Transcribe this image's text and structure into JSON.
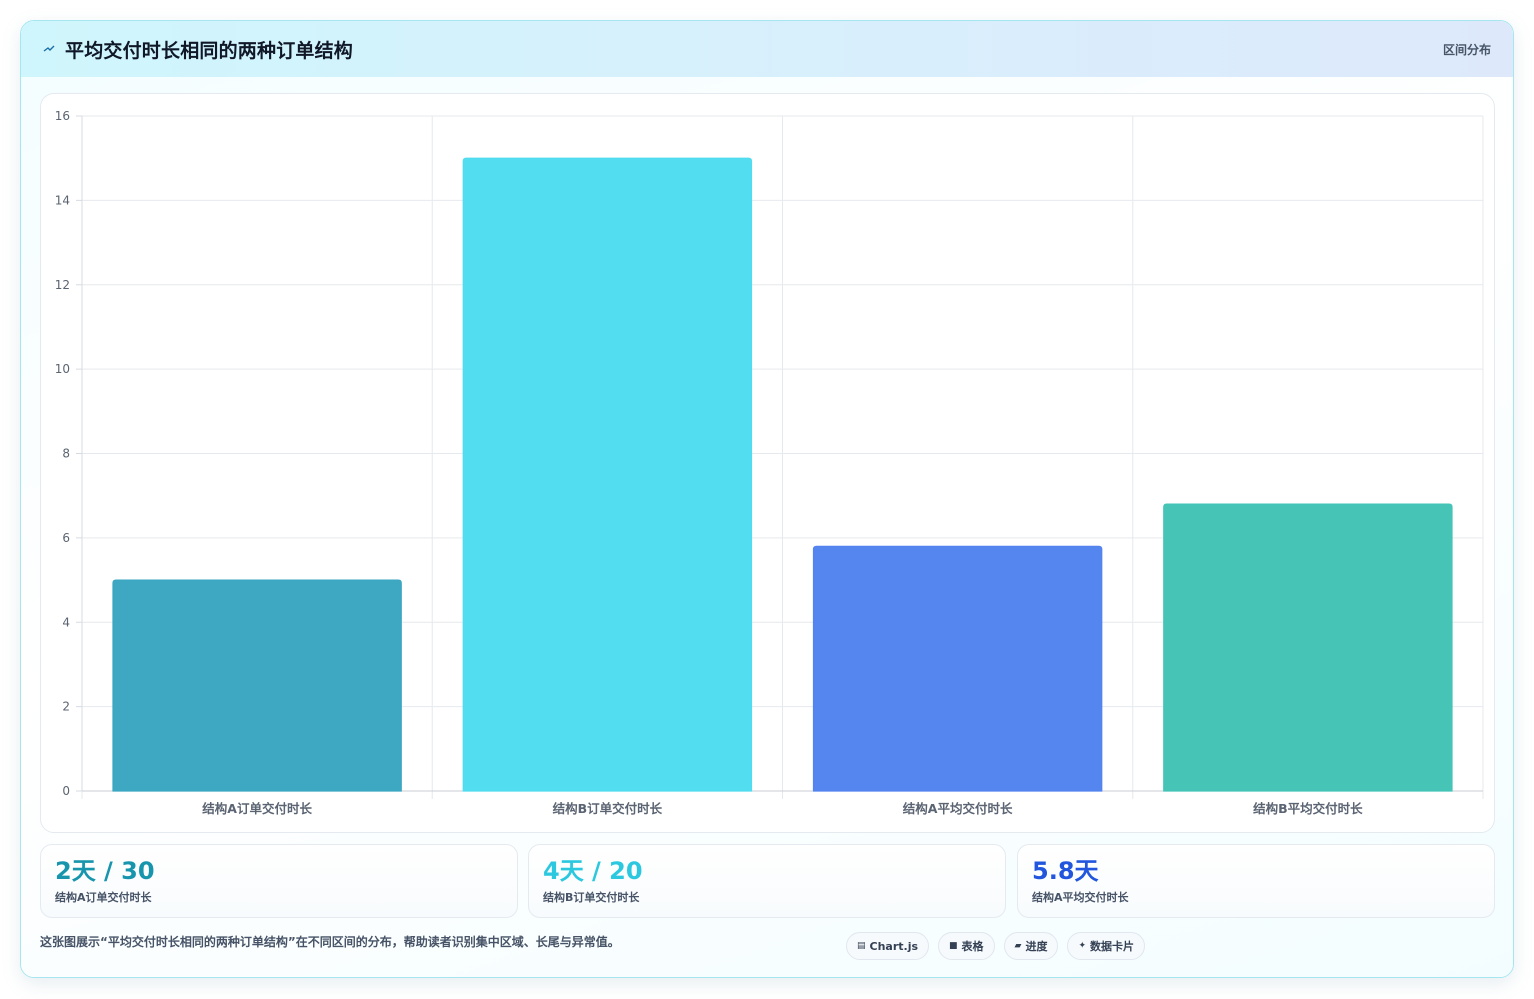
{
  "header": {
    "title": "平均交付时长相同的两种订单结构",
    "tag": "区间分布"
  },
  "chart_data": {
    "type": "bar",
    "categories": [
      "结构A订单交付时长",
      "结构B订单交付时长",
      "结构A平均交付时长",
      "结构B平均交付时长"
    ],
    "values": [
      5,
      15,
      5.8,
      6.8
    ],
    "colors": [
      "#3aa6c2",
      "#50dcf0",
      "#5283ef",
      "#42c4b6"
    ],
    "ylim": [
      0,
      16
    ],
    "yticks": [
      0,
      2,
      4,
      6,
      8,
      10,
      12,
      14,
      16
    ],
    "grid": true,
    "legend": "none"
  },
  "stats": [
    {
      "value": "2天 / 30",
      "label": "结构A订单交付时长",
      "color": "#1795ad"
    },
    {
      "value": "4天 / 20",
      "label": "结构B订单交付时长",
      "color": "#2cc8df"
    },
    {
      "value": "5.8天",
      "label": "结构A平均交付时长",
      "color": "#2156dd"
    }
  ],
  "footer": {
    "description": "这张图展示“平均交付时长相同的两种订单结构”在不同区间的分布，帮助读者识别集中区域、长尾与异常值。",
    "chips": [
      {
        "icon": "chart-icon",
        "glyph": "▤",
        "label": "Chart.js"
      },
      {
        "icon": "table-icon",
        "glyph": "■",
        "label": "表格"
      },
      {
        "icon": "progress-icon",
        "glyph": "▰",
        "label": "进度"
      },
      {
        "icon": "card-icon",
        "glyph": "✦",
        "label": "数据卡片"
      }
    ]
  }
}
